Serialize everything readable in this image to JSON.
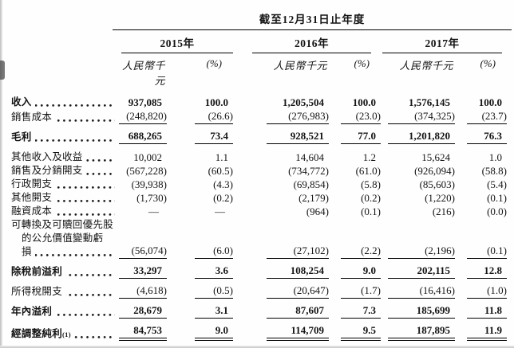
{
  "page": {
    "background": "#fefefe",
    "text_color": "#141414",
    "rule_color": "#000000"
  },
  "header": {
    "period_title": "截至12月31日止年度",
    "years": [
      {
        "label": "2015年"
      },
      {
        "label": "2016年"
      },
      {
        "label": "2017年"
      }
    ],
    "unit_label": "人民幣千元",
    "pct_label": "(%)"
  },
  "table": {
    "rows": [
      {
        "label": "收入",
        "bold": true,
        "underline": "none",
        "space": "none",
        "values": [
          "937,085",
          "100.0",
          "1,205,504",
          "100.0",
          "1,576,145",
          "100.0"
        ]
      },
      {
        "label": "銷售成本",
        "bold": false,
        "underline": "single",
        "space": "none",
        "values": [
          "(248,820)",
          "(26.6)",
          "(276,983)",
          "(23.0)",
          "(374,325)",
          "(23.7)"
        ]
      },
      {
        "label": "毛利",
        "bold": true,
        "underline": "single",
        "space": "small",
        "values": [
          "688,265",
          "73.4",
          "928,521",
          "77.0",
          "1,201,820",
          "76.3"
        ]
      },
      {
        "label": "其他收入及收益",
        "bold": false,
        "underline": "none",
        "space": "large",
        "values": [
          "10,002",
          "1.1",
          "14,604",
          "1.2",
          "15,624",
          "1.0"
        ]
      },
      {
        "label": "銷售及分銷開支",
        "bold": false,
        "underline": "none",
        "space": "none",
        "values": [
          "(567,228)",
          "(60.5)",
          "(734,772)",
          "(61.0)",
          "(926,094)",
          "(58.8)"
        ]
      },
      {
        "label": "行政開支",
        "bold": false,
        "underline": "none",
        "space": "none",
        "values": [
          "(39,938)",
          "(4.3)",
          "(69,854)",
          "(5.8)",
          "(85,603)",
          "(5.4)"
        ]
      },
      {
        "label": "其他開支",
        "bold": false,
        "underline": "none",
        "space": "none",
        "values": [
          "(1,730)",
          "(0.2)",
          "(2,179)",
          "(0.2)",
          "(1,220)",
          "(0.1)"
        ]
      },
      {
        "label": "融資成本",
        "bold": false,
        "underline": "none",
        "space": "none",
        "values": [
          "—",
          "—",
          "(964)",
          "(0.1)",
          "(216)",
          "(0.0)"
        ]
      },
      {
        "label_lines": [
          "可轉換及可贖回優先股",
          "的公允價值變動虧",
          "損"
        ],
        "bold": false,
        "underline": "single",
        "space": "none",
        "values": [
          "(56,074)",
          "(6.0)",
          "(27,102)",
          "(2.2)",
          "(2,196)",
          "(0.1)"
        ]
      },
      {
        "label": "除稅前溢利",
        "bold": true,
        "underline": "single",
        "space": "small",
        "values": [
          "33,297",
          "3.6",
          "108,254",
          "9.0",
          "202,115",
          "12.8"
        ]
      },
      {
        "label": "所得稅開支",
        "bold": false,
        "underline": "single",
        "space": "small",
        "values": [
          "(4,618)",
          "(0.5)",
          "(20,647)",
          "(1.7)",
          "(16,416)",
          "(1.0)"
        ]
      },
      {
        "label": "年內溢利",
        "bold": true,
        "underline": "single",
        "space": "small",
        "values": [
          "28,679",
          "3.1",
          "87,607",
          "7.3",
          "185,699",
          "11.8"
        ]
      },
      {
        "label": "經調整純利",
        "sup": "(1)",
        "bold": true,
        "underline": "double",
        "space": "small",
        "values": [
          "84,753",
          "9.0",
          "114,709",
          "9.5",
          "187,895",
          "11.9"
        ]
      }
    ]
  }
}
